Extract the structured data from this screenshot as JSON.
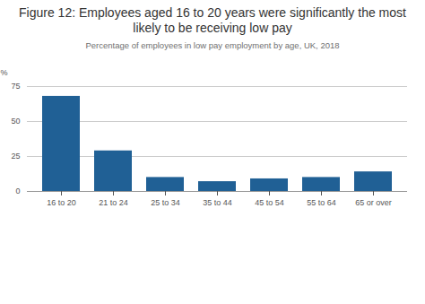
{
  "chart_data": {
    "type": "bar",
    "title": "Figure 12: Employees aged 16 to 20 years were significantly the most likely to be receiving low pay",
    "subtitle": "Percentage of employees in low pay employment by age, UK, 2018",
    "y_label": "%",
    "categories": [
      "16 to 20",
      "21 to 24",
      "25 to 34",
      "35 to 44",
      "45 to 54",
      "55 to 64",
      "65 or over"
    ],
    "values": [
      68,
      29,
      10,
      7,
      9,
      10,
      14
    ],
    "color": "#206095",
    "ylim": [
      0,
      75
    ],
    "yticks": [
      0,
      25,
      50,
      75
    ],
    "grid": true
  }
}
